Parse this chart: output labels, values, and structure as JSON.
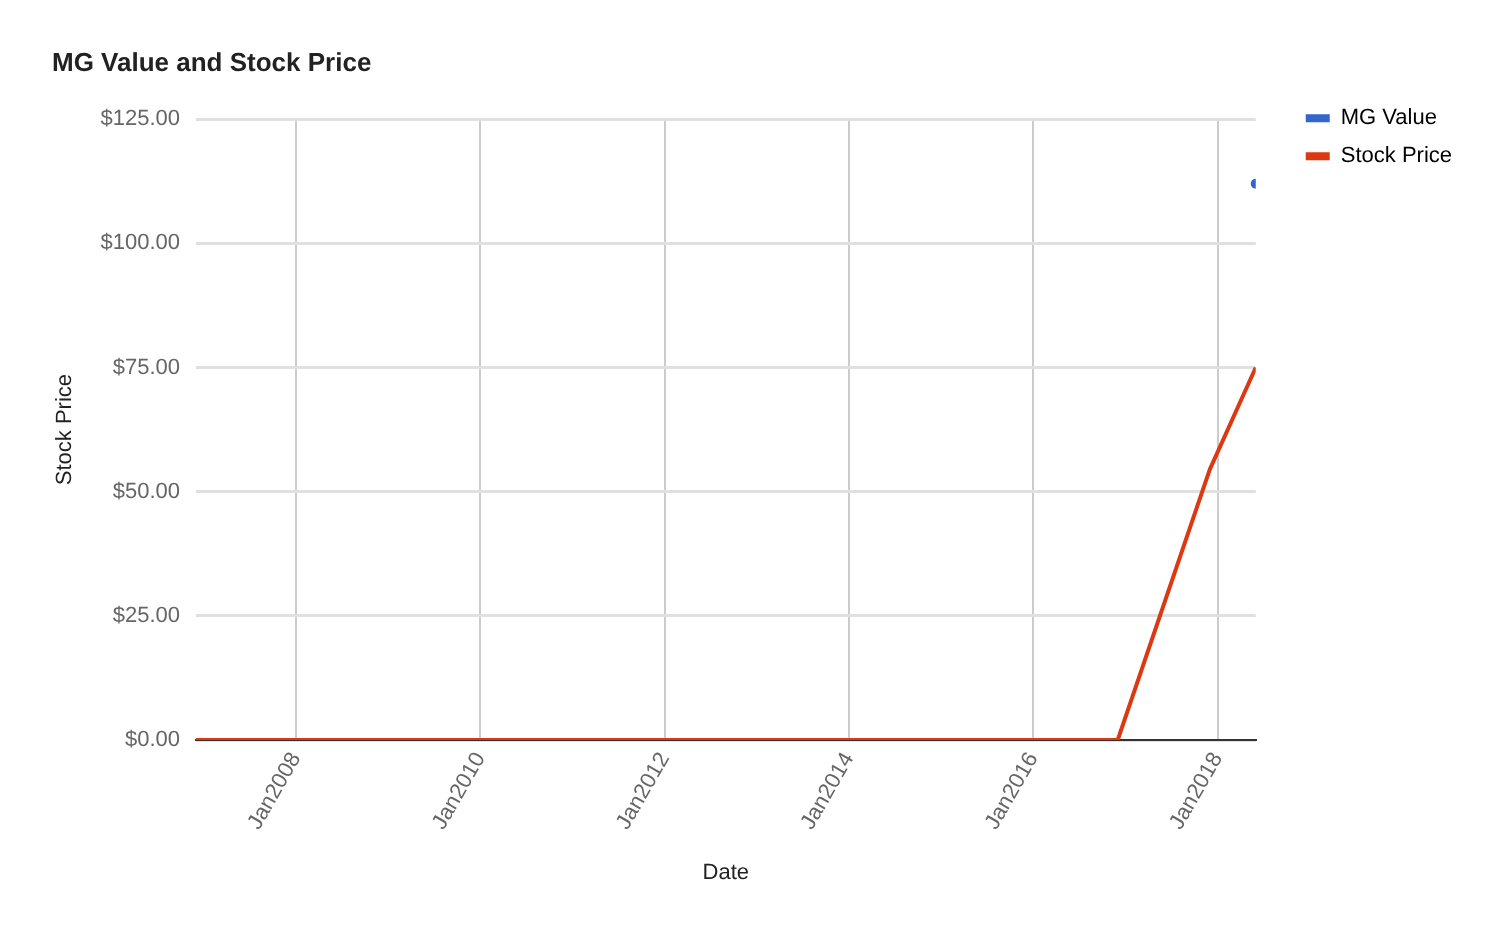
{
  "chart_data": {
    "type": "line",
    "title": "MG Value and Stock Price",
    "xlabel": "Date",
    "ylabel": "Stock Price",
    "x": [
      "2006-12",
      "2007-12",
      "2008-12",
      "2009-12",
      "2010-12",
      "2011-12",
      "2012-12",
      "2013-12",
      "2014-12",
      "2015-12",
      "2016-12",
      "2017-12",
      "2018-06"
    ],
    "series": [
      {
        "name": "MG Value",
        "color": "#3366cc",
        "marker": "circle",
        "values": [
          null,
          null,
          null,
          null,
          null,
          null,
          null,
          null,
          null,
          null,
          null,
          null,
          112
        ]
      },
      {
        "name": "Stock Price",
        "color": "#dc3912",
        "values": [
          0,
          0,
          0,
          0,
          0,
          0,
          0,
          0,
          0,
          0,
          0,
          54.5,
          75
        ]
      }
    ],
    "xlim": [
      "2006-12",
      "2018-06"
    ],
    "xticks": [
      {
        "value": "2008-01",
        "label": "Jan2008"
      },
      {
        "value": "2010-01",
        "label": "Jan2010"
      },
      {
        "value": "2012-01",
        "label": "Jan2012"
      },
      {
        "value": "2014-01",
        "label": "Jan2014"
      },
      {
        "value": "2016-01",
        "label": "Jan2016"
      },
      {
        "value": "2018-01",
        "label": "Jan2018"
      }
    ],
    "ylim": [
      0,
      125
    ],
    "yticks": [
      {
        "value": 0,
        "label": "$0.00"
      },
      {
        "value": 25,
        "label": "$25.00"
      },
      {
        "value": 50,
        "label": "$50.00"
      },
      {
        "value": 75,
        "label": "$75.00"
      },
      {
        "value": 100,
        "label": "$100.00"
      },
      {
        "value": 125,
        "label": "$125.00"
      }
    ],
    "grid": true,
    "legend": "right",
    "marker": "none",
    "line_style": "solid"
  }
}
